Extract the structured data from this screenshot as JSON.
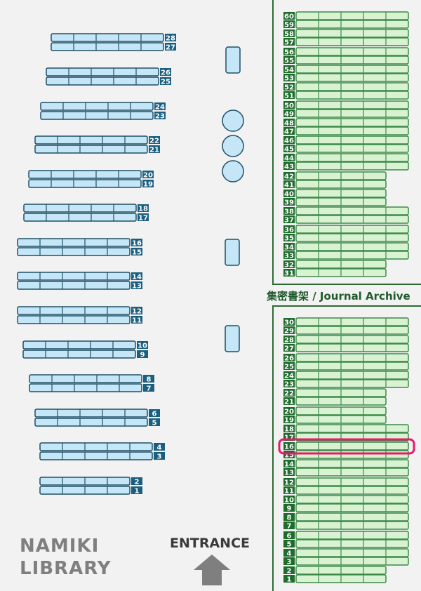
{
  "map": {
    "library_name_line1": "NAMIKI",
    "library_name_line2": "LIBRARY",
    "entrance_label": "ENTRANCE",
    "archive_label": "集密書架 / Journal Archive",
    "highlighted_shelf": {
      "area": "journal-archive",
      "number": "16"
    },
    "colors": {
      "general_shelf_fill": "#c5e6f6",
      "general_shelf_stroke": "#1f4f66",
      "general_label_bg": "#1b5f80",
      "archive_shelf_fill": "#d8f2d2",
      "archive_shelf_stroke": "#3d8a4a",
      "archive_label_bg": "#1e6b2c",
      "archive_border": "#2e6b34",
      "highlight": "#e8196e",
      "table_fill": "#c5e6f6",
      "arrow": "#7f7f7f"
    }
  },
  "general_shelves": [
    {
      "pair": [
        "28",
        "27"
      ],
      "sections": 5
    },
    {
      "pair": [
        "26",
        "25"
      ],
      "sections": 5
    },
    {
      "pair": [
        "24",
        "23"
      ],
      "sections": 5
    },
    {
      "pair": [
        "22",
        "21"
      ],
      "sections": 5
    },
    {
      "pair": [
        "20",
        "19"
      ],
      "sections": 5
    },
    {
      "pair": [
        "18",
        "17"
      ],
      "sections": 5
    },
    {
      "pair": [
        "16",
        "15"
      ],
      "sections": 5
    },
    {
      "pair": [
        "14",
        "13"
      ],
      "sections": 5
    },
    {
      "pair": [
        "12",
        "11"
      ],
      "sections": 5
    },
    {
      "pair": [
        "10",
        "9"
      ],
      "sections": 5
    },
    {
      "pair": [
        "8",
        "7"
      ],
      "sections": 5
    },
    {
      "pair": [
        "6",
        "5"
      ],
      "sections": 5
    },
    {
      "pair": [
        "4",
        "3"
      ],
      "sections": 5
    },
    {
      "pair": [
        "2",
        "1"
      ],
      "sections": 4
    }
  ],
  "archive_upper": [
    {
      "pair": [
        "60",
        "59"
      ],
      "sections": 5
    },
    {
      "pair": [
        "58",
        "57"
      ],
      "sections": 5
    },
    {
      "pair": [
        "56",
        "55"
      ],
      "sections": 5
    },
    {
      "pair": [
        "54",
        "53"
      ],
      "sections": 5
    },
    {
      "pair": [
        "52",
        "51"
      ],
      "sections": 5
    },
    {
      "pair": [
        "50",
        "49"
      ],
      "sections": 5
    },
    {
      "pair": [
        "48",
        "47"
      ],
      "sections": 5
    },
    {
      "pair": [
        "46",
        "45"
      ],
      "sections": 5
    },
    {
      "pair": [
        "44",
        "43"
      ],
      "sections": 5
    },
    {
      "pair": [
        "42",
        "41"
      ],
      "sections": 4
    },
    {
      "pair": [
        "40",
        "39"
      ],
      "sections": 4
    },
    {
      "pair": [
        "38",
        "37"
      ],
      "sections": 5
    },
    {
      "pair": [
        "36",
        "35"
      ],
      "sections": 5
    },
    {
      "pair": [
        "34",
        "33"
      ],
      "sections": 5
    },
    {
      "pair": [
        "32",
        "31"
      ],
      "sections": 4
    }
  ],
  "archive_lower": [
    {
      "pair": [
        "30",
        "29"
      ],
      "sections": 5
    },
    {
      "pair": [
        "28",
        "27"
      ],
      "sections": 5
    },
    {
      "pair": [
        "26",
        "25"
      ],
      "sections": 5
    },
    {
      "pair": [
        "24",
        "23"
      ],
      "sections": 5
    },
    {
      "pair": [
        "22",
        "21"
      ],
      "sections": 4
    },
    {
      "pair": [
        "20",
        "19"
      ],
      "sections": 4
    },
    {
      "pair": [
        "18",
        "17"
      ],
      "sections": 5
    },
    {
      "pair": [
        "16",
        "15"
      ],
      "sections": 5
    },
    {
      "pair": [
        "14",
        "13"
      ],
      "sections": 5
    },
    {
      "pair": [
        "12",
        "11"
      ],
      "sections": 5
    },
    {
      "pair": [
        "10",
        "9"
      ],
      "sections": 5
    },
    {
      "pair": [
        "8",
        "7"
      ],
      "sections": 5
    },
    {
      "pair": [
        "6",
        "5"
      ],
      "sections": 5
    },
    {
      "pair": [
        "4",
        "3"
      ],
      "sections": 5
    },
    {
      "pair": [
        "2",
        "1"
      ],
      "sections": 4
    }
  ],
  "tables": [
    {
      "shape": "rect"
    },
    {
      "shape": "circle"
    },
    {
      "shape": "circle"
    },
    {
      "shape": "circle"
    },
    {
      "shape": "rect"
    },
    {
      "shape": "rect"
    }
  ]
}
